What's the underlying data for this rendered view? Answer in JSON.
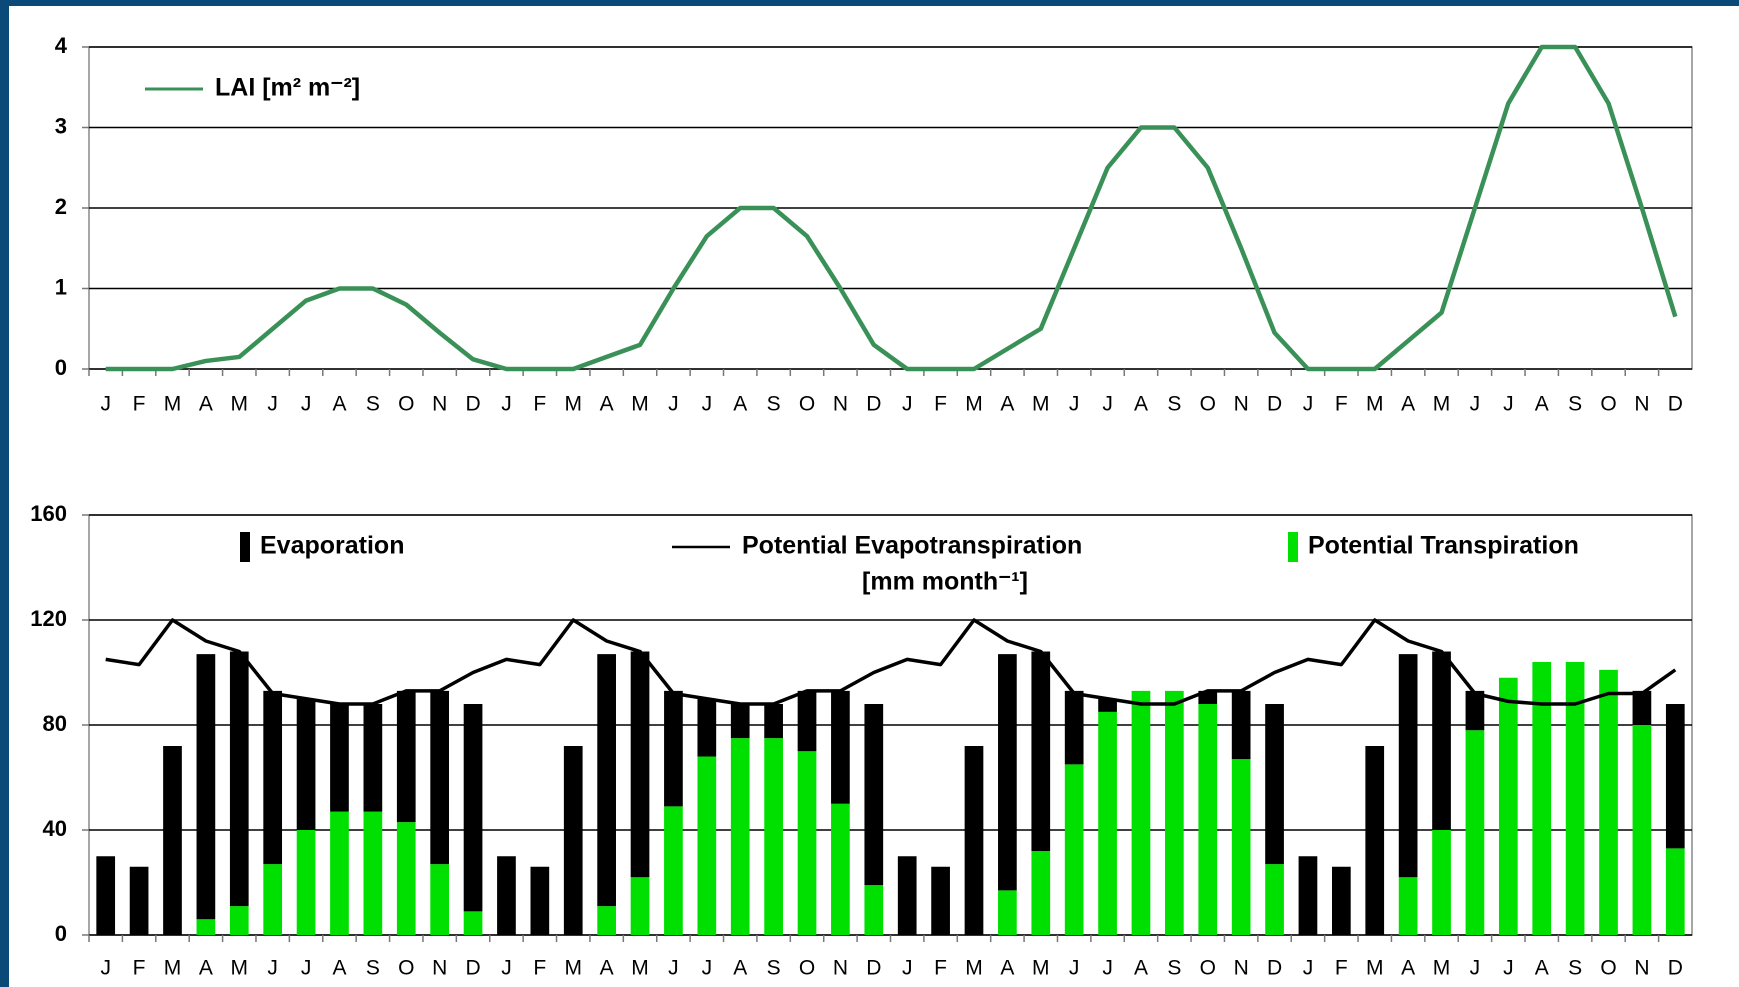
{
  "chart_data": [
    {
      "type": "line",
      "categories": [
        "J",
        "F",
        "M",
        "A",
        "M",
        "J",
        "J",
        "A",
        "S",
        "O",
        "N",
        "D",
        "J",
        "F",
        "M",
        "A",
        "M",
        "J",
        "J",
        "A",
        "S",
        "O",
        "N",
        "D",
        "J",
        "F",
        "M",
        "A",
        "M",
        "J",
        "J",
        "A",
        "S",
        "O",
        "N",
        "D",
        "J",
        "F",
        "M",
        "A",
        "M",
        "J",
        "J",
        "A",
        "S",
        "O",
        "N",
        "D"
      ],
      "series": [
        {
          "name": "LAI [m² m⁻²]",
          "color": "#3a9157",
          "values": [
            0,
            0,
            0,
            0.1,
            0.15,
            0.5,
            0.85,
            1.0,
            1.0,
            0.8,
            0.45,
            0.12,
            0,
            0,
            0,
            0.15,
            0.3,
            1.0,
            1.65,
            2.0,
            2.0,
            1.65,
            1.0,
            0.3,
            0,
            0,
            0,
            0.25,
            0.5,
            1.5,
            2.5,
            3.0,
            3.0,
            2.5,
            1.5,
            0.45,
            0,
            0,
            0,
            0.35,
            0.7,
            2.0,
            3.3,
            4.0,
            4.0,
            3.3,
            2.0,
            0.65
          ]
        }
      ],
      "ylim": [
        0,
        4
      ],
      "yticks": [
        0,
        1,
        2,
        3,
        4
      ],
      "grid": true
    },
    {
      "type": "bar",
      "stacked": true,
      "categories": [
        "J",
        "F",
        "M",
        "A",
        "M",
        "J",
        "J",
        "A",
        "S",
        "O",
        "N",
        "D",
        "J",
        "F",
        "M",
        "A",
        "M",
        "J",
        "J",
        "A",
        "S",
        "O",
        "N",
        "D",
        "J",
        "F",
        "M",
        "A",
        "M",
        "J",
        "J",
        "A",
        "S",
        "O",
        "N",
        "D",
        "J",
        "F",
        "M",
        "A",
        "M",
        "J",
        "J",
        "A",
        "S",
        "O",
        "N",
        "D"
      ],
      "series": [
        {
          "name": "Evaporation",
          "color": "#000000",
          "values": [
            30,
            26,
            72,
            101,
            97,
            66,
            50,
            41,
            41,
            50,
            66,
            79,
            30,
            26,
            72,
            96,
            86,
            44,
            22,
            13,
            13,
            23,
            43,
            69,
            30,
            26,
            72,
            90,
            76,
            28,
            5,
            0,
            0,
            5,
            26,
            61,
            30,
            26,
            72,
            85,
            68,
            15,
            0,
            0,
            0,
            0,
            13,
            55
          ]
        },
        {
          "name": "Potential Evapotranspiration",
          "type": "line",
          "color": "#000000",
          "values": [
            105,
            103,
            120,
            112,
            108,
            92,
            90,
            88,
            88,
            93,
            93,
            100,
            105,
            103,
            120,
            112,
            108,
            92,
            90,
            88,
            88,
            93,
            93,
            100,
            105,
            103,
            120,
            112,
            108,
            92,
            90,
            88,
            88,
            93,
            93,
            100,
            105,
            103,
            120,
            112,
            108,
            92,
            89,
            88,
            88,
            92,
            92,
            101
          ]
        },
        {
          "name": "Potential Transpiration",
          "color": "#00e000",
          "values": [
            0,
            0,
            0,
            6,
            11,
            27,
            40,
            47,
            47,
            43,
            27,
            9,
            0,
            0,
            0,
            11,
            22,
            49,
            68,
            75,
            75,
            70,
            50,
            19,
            0,
            0,
            0,
            17,
            32,
            65,
            85,
            93,
            93,
            88,
            67,
            27,
            0,
            0,
            0,
            22,
            40,
            78,
            98,
            104,
            104,
            101,
            80,
            33
          ]
        }
      ],
      "unit_label": "[mm month⁻¹]",
      "ylim": [
        0,
        160
      ],
      "yticks": [
        0,
        40,
        80,
        120,
        160
      ],
      "grid": true
    }
  ]
}
